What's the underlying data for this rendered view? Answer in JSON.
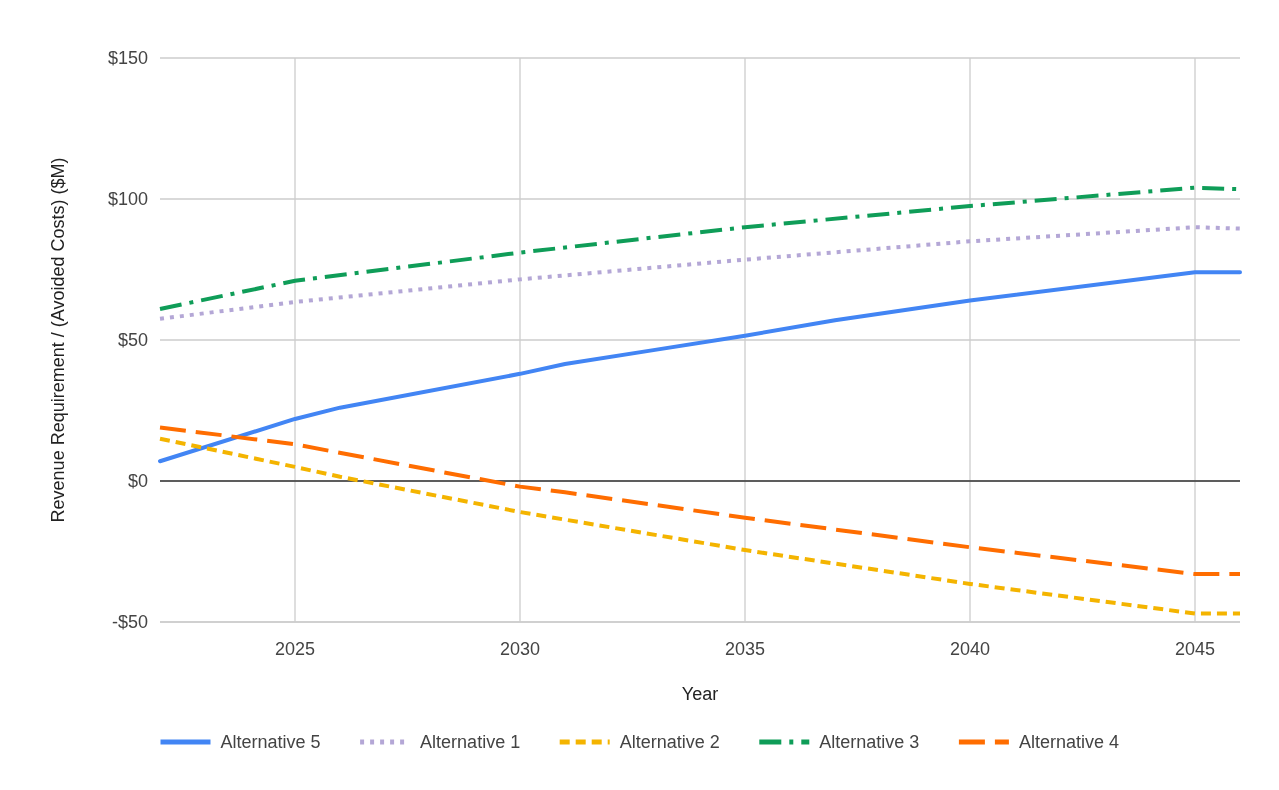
{
  "chart_data": {
    "type": "line",
    "xlabel": "Year",
    "ylabel": "Revenue Requirement / (Avoided Costs) ($M)",
    "xlim": [
      2022,
      2046
    ],
    "xticks": [
      2025,
      2030,
      2035,
      2040,
      2045
    ],
    "ylim": [
      -50,
      150
    ],
    "yticks": [
      {
        "value": -50,
        "label": "-$50"
      },
      {
        "value": 0,
        "label": "$0"
      },
      {
        "value": 50,
        "label": "$50"
      },
      {
        "value": 100,
        "label": "$100"
      },
      {
        "value": 150,
        "label": "$150"
      }
    ],
    "grid": true,
    "legend": "bottom",
    "series": [
      {
        "name": "Alternative 5",
        "color": "#4285f4",
        "line_style": "solid",
        "x": [
          2022,
          2025,
          2026,
          2030,
          2031,
          2033,
          2035,
          2037,
          2040,
          2045,
          2046
        ],
        "values": [
          7,
          22,
          26,
          38,
          41.5,
          46.5,
          51.5,
          57,
          64,
          74,
          74
        ]
      },
      {
        "name": "Alternative 1",
        "color": "#b4a7d6",
        "line_style": "dotted",
        "x": [
          2022,
          2025,
          2030,
          2035,
          2040,
          2045,
          2046
        ],
        "values": [
          57.5,
          63.5,
          71.5,
          78.5,
          85,
          90,
          89.5
        ]
      },
      {
        "name": "Alternative 2",
        "color": "#f4b400",
        "line_style": "dashed",
        "x": [
          2022,
          2025,
          2026,
          2030,
          2035,
          2040,
          2045,
          2046
        ],
        "values": [
          15,
          5,
          1.5,
          -11,
          -24.5,
          -36.5,
          -47,
          -47
        ]
      },
      {
        "name": "Alternative 3",
        "color": "#0f9d58",
        "line_style": "dashed",
        "x": [
          2022,
          2025,
          2030,
          2035,
          2040,
          2045,
          2046
        ],
        "values": [
          61,
          71,
          81,
          90,
          97.5,
          104,
          103.5
        ]
      },
      {
        "name": "Alternative 4",
        "color": "#ff6d00",
        "line_style": "dashed",
        "x": [
          2022,
          2025,
          2030,
          2031,
          2035,
          2040,
          2045,
          2046
        ],
        "values": [
          19,
          13,
          -2,
          -4,
          -13,
          -23.5,
          -33,
          -33
        ]
      }
    ]
  }
}
